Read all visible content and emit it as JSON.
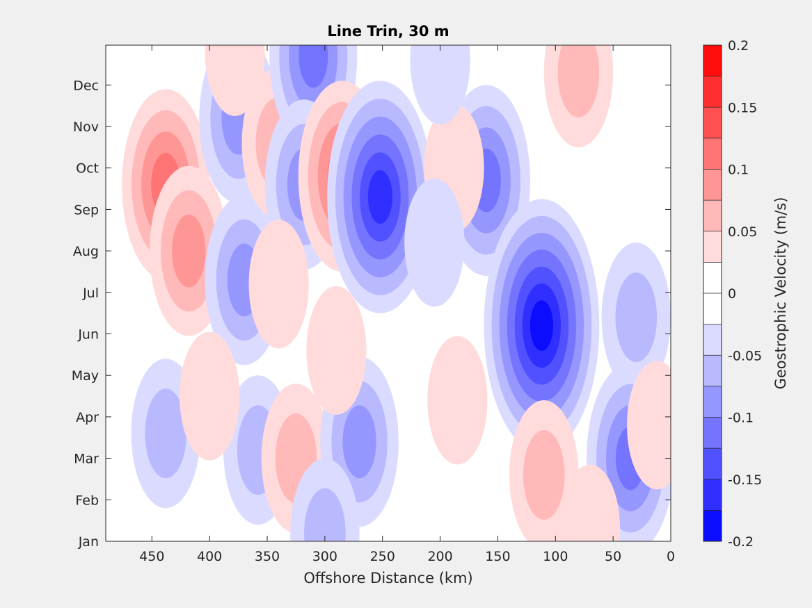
{
  "chart_data": {
    "type": "heatmap",
    "subtype": "filled-contour",
    "title": "Line Trin, 30 m",
    "xlabel": "Offshore Distance (km)",
    "ylabel": "",
    "x_reversed": true,
    "xlim": [
      490,
      0
    ],
    "xticks": [
      450,
      400,
      350,
      300,
      250,
      200,
      150,
      100,
      50,
      0
    ],
    "y_ticklabels": [
      "Jan",
      "Feb",
      "Mar",
      "Apr",
      "May",
      "Jun",
      "Jul",
      "Aug",
      "Sep",
      "Oct",
      "Nov",
      "Dec"
    ],
    "ylim": [
      0,
      12
    ],
    "y_unit": "month",
    "colorbar": {
      "label": "Geostrophic Velocity (m/s)",
      "limits": [
        -0.2,
        0.2
      ],
      "level_step": 0.025,
      "ticks": [
        "0.2",
        "0.15",
        "0.1",
        "0.05",
        "0",
        "-0.05",
        "-0.1",
        "-0.15",
        "-0.2"
      ],
      "positive_color": "#ff0000",
      "negative_color": "#0000ff",
      "zero_color": "#ffffff"
    },
    "features": [
      {
        "x": 438,
        "y": 8.6,
        "value": 0.11
      },
      {
        "x": 418,
        "y": 7.0,
        "value": 0.09
      },
      {
        "x": 375,
        "y": 10.2,
        "value": -0.08
      },
      {
        "x": 370,
        "y": 6.3,
        "value": -0.08
      },
      {
        "x": 378,
        "y": 11.8,
        "value": 0.04
      },
      {
        "x": 342,
        "y": 9.6,
        "value": 0.05
      },
      {
        "x": 310,
        "y": 11.7,
        "value": -0.1
      },
      {
        "x": 318,
        "y": 8.6,
        "value": -0.08
      },
      {
        "x": 285,
        "y": 8.8,
        "value": 0.12
      },
      {
        "x": 252,
        "y": 8.3,
        "value": -0.16
      },
      {
        "x": 160,
        "y": 8.7,
        "value": -0.12
      },
      {
        "x": 112,
        "y": 5.2,
        "value": -0.19
      },
      {
        "x": 80,
        "y": 11.3,
        "value": 0.07
      },
      {
        "x": 30,
        "y": 5.4,
        "value": -0.07
      },
      {
        "x": 438,
        "y": 2.6,
        "value": -0.06
      },
      {
        "x": 358,
        "y": 2.2,
        "value": -0.06
      },
      {
        "x": 325,
        "y": 2.0,
        "value": 0.07
      },
      {
        "x": 270,
        "y": 2.4,
        "value": -0.08
      },
      {
        "x": 290,
        "y": 4.6,
        "value": 0.04
      },
      {
        "x": 400,
        "y": 3.5,
        "value": 0.04
      },
      {
        "x": 340,
        "y": 6.2,
        "value": 0.04
      },
      {
        "x": 110,
        "y": 1.6,
        "value": 0.07
      },
      {
        "x": 35,
        "y": 2.0,
        "value": -0.1
      },
      {
        "x": 300,
        "y": 0.2,
        "value": -0.05
      },
      {
        "x": 70,
        "y": 0.3,
        "value": 0.04
      },
      {
        "x": 185,
        "y": 3.4,
        "value": 0.03
      },
      {
        "x": 188,
        "y": 9.0,
        "value": 0.04
      },
      {
        "x": 205,
        "y": 7.2,
        "value": -0.04
      },
      {
        "x": 200,
        "y": 11.6,
        "value": -0.04
      },
      {
        "x": 12,
        "y": 2.8,
        "value": 0.04
      }
    ]
  }
}
